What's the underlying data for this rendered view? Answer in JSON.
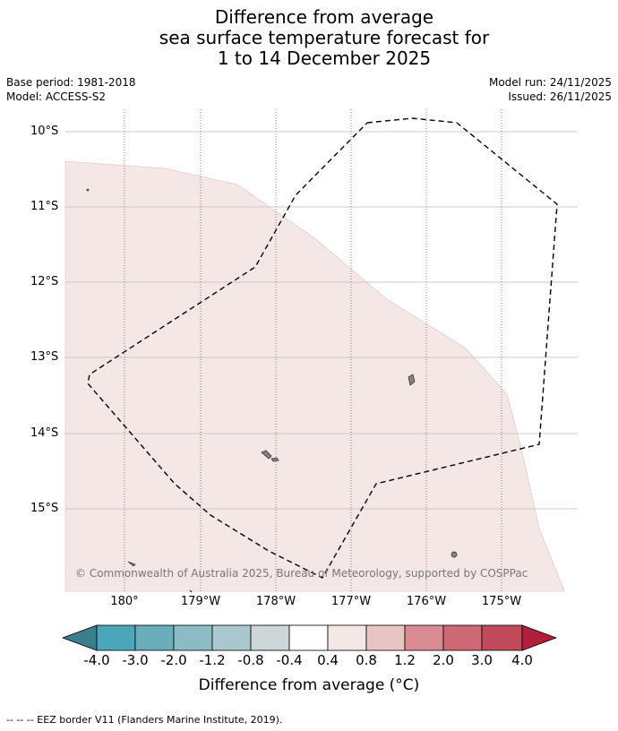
{
  "title": {
    "line1": "Difference from average",
    "line2": "sea surface temperature forecast for",
    "line3": "1 to 14 December 2025"
  },
  "meta": {
    "base_period": "Base period: 1981-2018",
    "model": "Model: ACCESS-S2",
    "model_run": "Model run: 24/11/2025",
    "issued": "Issued: 26/11/2025"
  },
  "axes": {
    "latitude_labels": [
      "10°S",
      "11°S",
      "12°S",
      "13°S",
      "14°S",
      "15°S"
    ],
    "longitude_labels": [
      "180°",
      "179°W",
      "178°W",
      "177°W",
      "176°W",
      "175°W"
    ]
  },
  "copyright": "© Commonwealth of Australia 2025, Bureau of Meteorology, supported by COSPPac",
  "colorbar": {
    "ticks": [
      "-4.0",
      "-3.0",
      "-2.0",
      "-1.2",
      "-0.8",
      "-0.4",
      "0.4",
      "0.8",
      "1.2",
      "2.0",
      "3.0",
      "4.0"
    ],
    "colors": [
      "#3a7f8d",
      "#4aa6b8",
      "#6aaebb",
      "#8bbcc6",
      "#a9c7cc",
      "#cdd6d8",
      "#ffffff",
      "#f5e7e6",
      "#e8c4c2",
      "#d98b92",
      "#cd6874",
      "#c04a5a",
      "#b0203c"
    ],
    "label": "Difference from average (°C)"
  },
  "footnote": "--  --  -- EEZ border V11 (Flanders Marine Institute, 2019)."
}
